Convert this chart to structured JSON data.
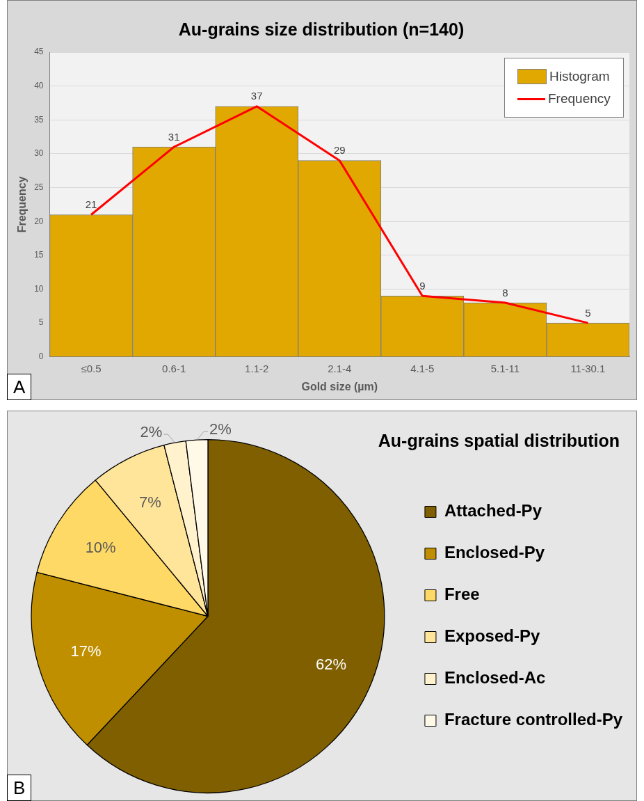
{
  "chart_data": [
    {
      "type": "bar",
      "title": "Au-grains size distribution (n=140)",
      "xlabel": "Gold size (µm)",
      "ylabel": "Frequency",
      "categories": [
        "≤0.5",
        "0.6-1",
        "1.1-2",
        "2.1-4",
        "4.1-5",
        "5.1-11",
        "11-30.1"
      ],
      "series": [
        {
          "name": "Histogram",
          "type": "bar",
          "color": "#e0a800",
          "values": [
            21,
            31,
            37,
            29,
            9,
            8,
            5
          ]
        },
        {
          "name": "Frequency",
          "type": "line",
          "color": "#ff0000",
          "values": [
            21,
            31,
            37,
            29,
            9,
            8,
            5
          ],
          "value_labels": [
            "21",
            "31",
            "37",
            "29",
            "9",
            "8",
            "5"
          ]
        }
      ],
      "ylim": [
        0,
        45
      ],
      "yticks": [
        0,
        5,
        10,
        15,
        20,
        25,
        30,
        35,
        40,
        45
      ],
      "grid": "y",
      "legend": "top right",
      "marker": "none",
      "annotations": [
        "A"
      ]
    },
    {
      "type": "pie",
      "title": "Au-grains spatial distribution",
      "categories": [
        "Attached-Py",
        "Enclosed-Py",
        "Free",
        "Exposed-Py",
        "Enclosed-Ac",
        "Fracture controlled-Py"
      ],
      "values": [
        62,
        17,
        10,
        7,
        2,
        2
      ],
      "colors": [
        "#7f5f00",
        "#bf8f00",
        "#ffd966",
        "#ffe599",
        "#fff2cc",
        "#fffae8"
      ],
      "value_labels": [
        "62%",
        "17%",
        "10%",
        "7%",
        "2%",
        "2%"
      ],
      "legend": "right",
      "annotations": [
        "B"
      ]
    }
  ]
}
